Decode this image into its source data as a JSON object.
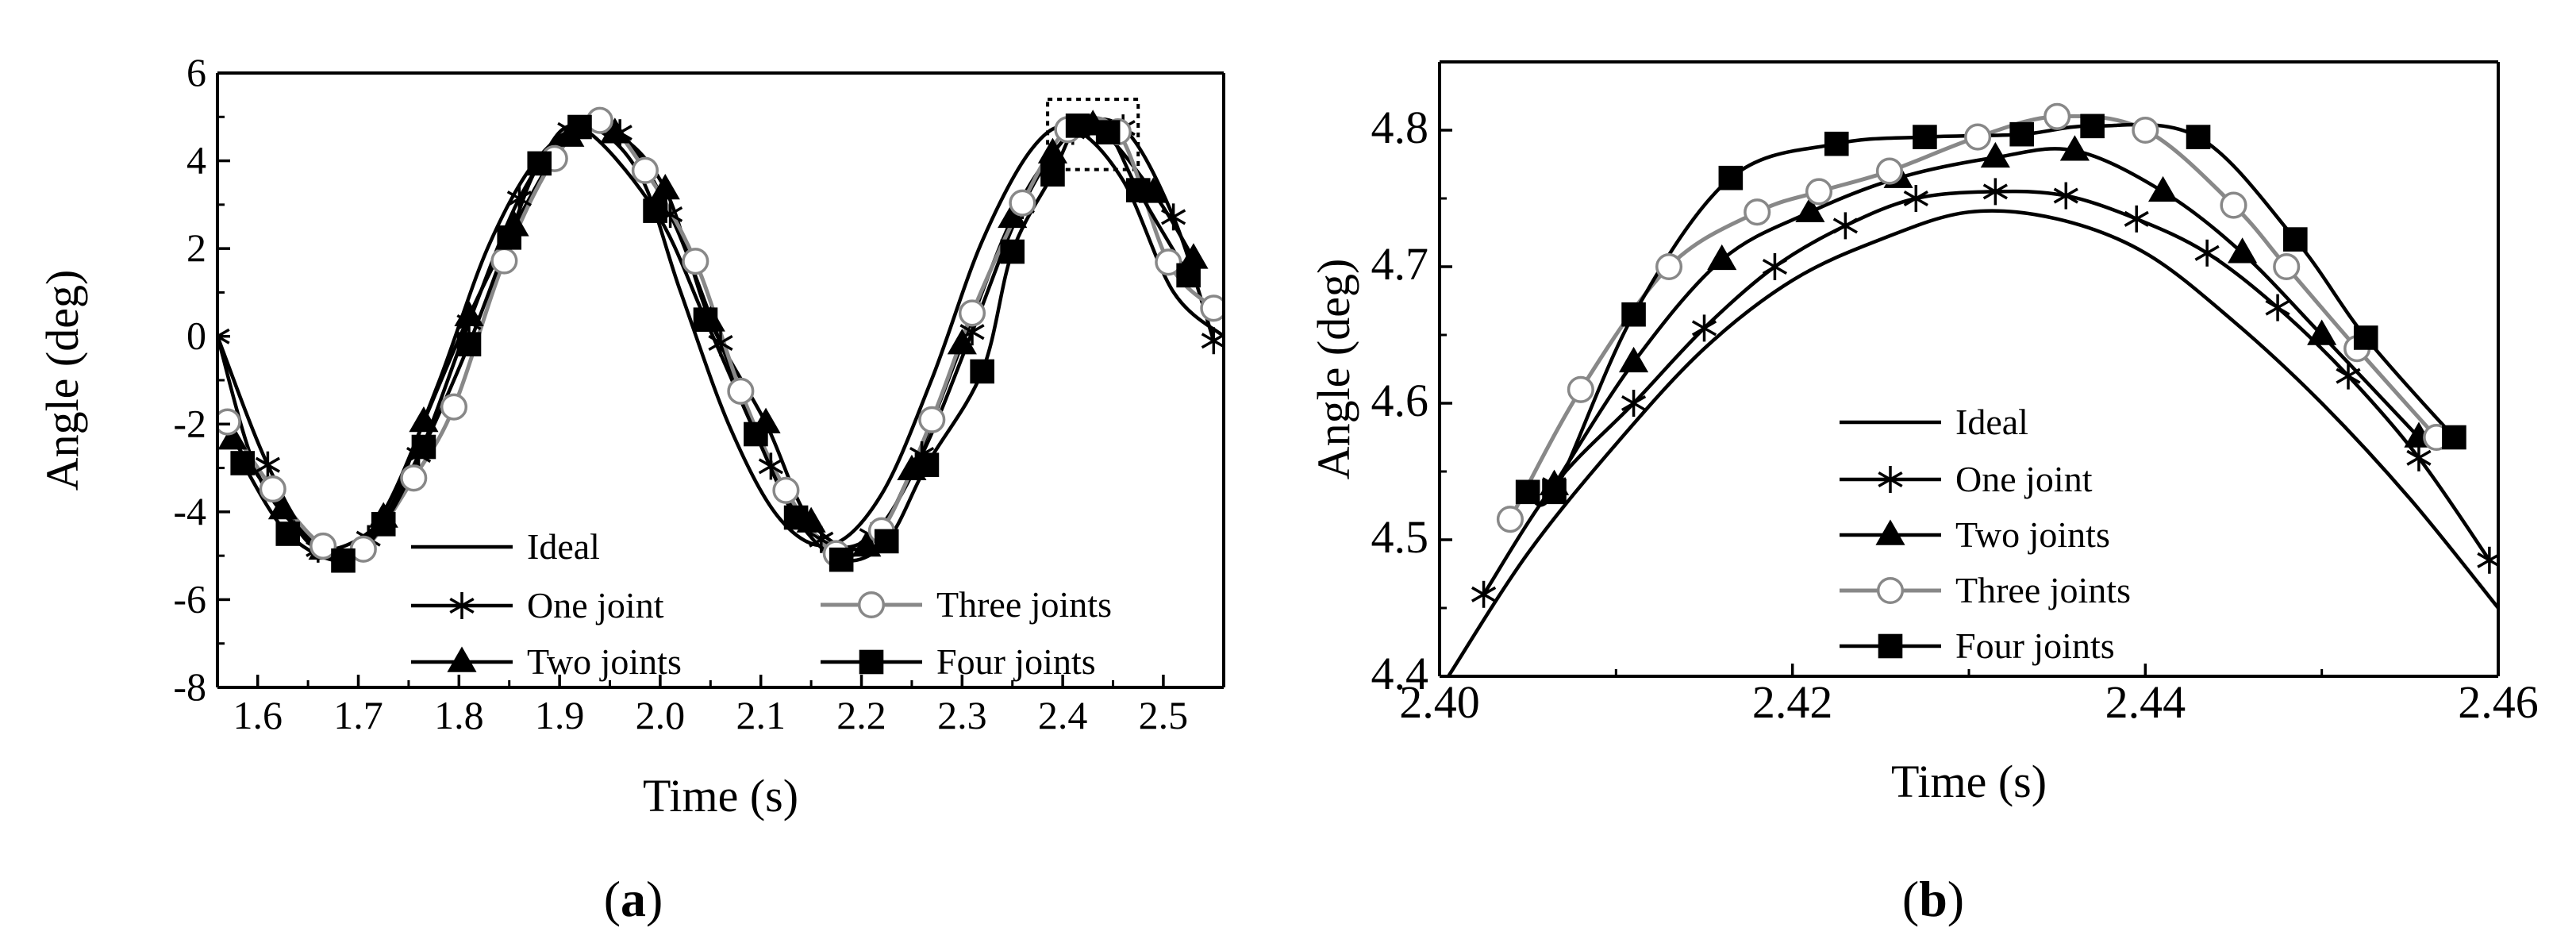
{
  "colors": {
    "ink": "#000000",
    "gray": "#888888",
    "white": "#ffffff"
  },
  "chart_data": [
    {
      "panel_label": "a",
      "type": "line",
      "xlabel": "Time (s)",
      "ylabel": "Angle (deg)",
      "xlim": [
        1.56,
        2.56
      ],
      "ylim": [
        -8,
        6
      ],
      "xticks": [
        "1.6",
        "1.7",
        "1.8",
        "1.9",
        "2.0",
        "2.1",
        "2.2",
        "2.3",
        "2.4",
        "2.5"
      ],
      "yticks": [
        "-8",
        "-6",
        "-4",
        "-2",
        "0",
        "2",
        "4",
        "6"
      ],
      "grid": false,
      "legend_position": "bottom-center, two columns",
      "zoom_box": {
        "x": [
          2.385,
          2.475
        ],
        "y": [
          3.8,
          5.4
        ]
      },
      "series": [
        {
          "name": "Ideal",
          "marker": "none",
          "color": "#000000",
          "x": [
            1.56,
            1.6,
            1.65,
            1.69,
            1.73,
            1.78,
            1.83,
            1.88,
            1.93,
            1.98,
            2.02,
            2.07,
            2.12,
            2.17,
            2.22,
            2.27,
            2.32,
            2.37,
            2.41,
            2.46,
            2.51,
            2.56
          ],
          "y": [
            0.0,
            -3.13,
            -4.58,
            -4.94,
            -3.8,
            -1.04,
            2.09,
            4.1,
            4.75,
            3.67,
            1.03,
            -2.11,
            -4.19,
            -4.75,
            -3.6,
            -0.97,
            2.17,
            4.29,
            4.74,
            3.55,
            1.01,
            0.0
          ]
        },
        {
          "name": "One joint",
          "marker": "star",
          "color": "#000000",
          "x": [
            1.56,
            1.61,
            1.66,
            1.71,
            1.76,
            1.81,
            1.86,
            1.91,
            1.96,
            2.01,
            2.06,
            2.11,
            2.16,
            2.21,
            2.26,
            2.31,
            2.36,
            2.41,
            2.46,
            2.51,
            2.55
          ],
          "y": [
            0.0,
            -2.93,
            -4.85,
            -4.61,
            -2.7,
            0.32,
            3.14,
            4.7,
            4.64,
            2.78,
            -0.15,
            -2.96,
            -4.63,
            -4.55,
            -2.7,
            0.1,
            2.98,
            4.67,
            4.75,
            2.72,
            -0.1
          ]
        },
        {
          "name": "Two joints",
          "marker": "triangle",
          "color": "#000000",
          "x": [
            1.575,
            1.625,
            1.665,
            1.725,
            1.765,
            1.81,
            1.855,
            1.91,
            1.955,
            2.005,
            2.05,
            2.105,
            2.15,
            2.205,
            2.25,
            2.3,
            2.35,
            2.39,
            2.43,
            2.49,
            2.53
          ],
          "y": [
            -2.35,
            -3.94,
            -4.86,
            -4.13,
            -1.95,
            0.46,
            2.51,
            4.55,
            4.63,
            3.35,
            0.34,
            -1.98,
            -4.24,
            -4.79,
            -3.05,
            -0.18,
            2.7,
            4.17,
            4.81,
            3.27,
            1.77
          ]
        },
        {
          "name": "Three joints",
          "marker": "circle-open",
          "color": "#888888",
          "x": [
            1.57,
            1.615,
            1.665,
            1.705,
            1.755,
            1.795,
            1.845,
            1.895,
            1.94,
            1.985,
            2.035,
            2.08,
            2.125,
            2.175,
            2.22,
            2.27,
            2.31,
            2.36,
            2.405,
            2.455,
            2.505,
            2.55
          ],
          "y": [
            -1.95,
            -3.48,
            -4.78,
            -4.85,
            -3.23,
            -1.61,
            1.72,
            4.05,
            4.92,
            3.78,
            1.71,
            -1.25,
            -3.51,
            -4.95,
            -4.43,
            -1.9,
            0.53,
            3.04,
            4.71,
            4.66,
            1.69,
            0.64
          ]
        },
        {
          "name": "Four joints",
          "marker": "square",
          "color": "#000000",
          "x": [
            1.585,
            1.63,
            1.685,
            1.725,
            1.765,
            1.81,
            1.85,
            1.88,
            1.92,
            1.995,
            2.045,
            2.095,
            2.135,
            2.18,
            2.225,
            2.265,
            2.32,
            2.35,
            2.39,
            2.415,
            2.445,
            2.475,
            2.525
          ],
          "y": [
            -2.89,
            -4.5,
            -5.11,
            -4.28,
            -2.52,
            -0.18,
            2.25,
            3.94,
            4.77,
            2.86,
            0.38,
            -2.23,
            -4.13,
            -5.09,
            -4.67,
            -2.93,
            -0.8,
            1.93,
            3.69,
            4.8,
            4.65,
            3.33,
            1.39
          ]
        }
      ]
    },
    {
      "panel_label": "b",
      "type": "line",
      "xlabel": "Time (s)",
      "ylabel": "Angle (deg)",
      "xlim": [
        2.4,
        2.46
      ],
      "ylim": [
        4.4,
        4.85
      ],
      "xticks": [
        "2.40",
        "2.42",
        "2.44",
        "2.46"
      ],
      "yticks": [
        "4.4",
        "4.5",
        "4.6",
        "4.7",
        "4.8"
      ],
      "grid": false,
      "legend_position": "center-left, one column",
      "series": [
        {
          "name": "Ideal",
          "marker": "none",
          "color": "#000000",
          "x": [
            2.4005,
            2.405,
            2.41,
            2.415,
            2.42,
            2.425,
            2.43,
            2.435,
            2.44,
            2.445,
            2.45,
            2.455,
            2.46
          ],
          "y": [
            4.4,
            4.49,
            4.57,
            4.64,
            4.69,
            4.72,
            4.74,
            4.735,
            4.71,
            4.66,
            4.6,
            4.53,
            4.45
          ]
        },
        {
          "name": "One joint",
          "marker": "star",
          "color": "#000000",
          "x": [
            2.4025,
            2.4065,
            2.411,
            2.415,
            2.419,
            2.423,
            2.427,
            2.4315,
            2.4355,
            2.4395,
            2.4435,
            2.4475,
            2.4515,
            2.4555,
            2.4595
          ],
          "y": [
            4.46,
            4.54,
            4.6,
            4.655,
            4.7,
            4.73,
            4.75,
            4.755,
            4.752,
            4.735,
            4.71,
            4.67,
            4.62,
            4.56,
            4.485
          ]
        },
        {
          "name": "Two joints",
          "marker": "triangle",
          "color": "#000000",
          "x": [
            2.4065,
            2.411,
            2.416,
            2.421,
            2.426,
            2.4315,
            2.436,
            2.441,
            2.4455,
            2.45,
            2.4555
          ],
          "y": [
            4.54,
            4.63,
            4.705,
            4.74,
            4.765,
            4.78,
            4.785,
            4.755,
            4.71,
            4.65,
            4.575
          ]
        },
        {
          "name": "Three joints",
          "marker": "circle-open",
          "color": "#888888",
          "x": [
            2.404,
            2.408,
            2.413,
            2.418,
            2.4215,
            2.4255,
            2.4305,
            2.435,
            2.44,
            2.445,
            2.448,
            2.452,
            2.4565
          ],
          "y": [
            4.515,
            4.61,
            4.7,
            4.74,
            4.755,
            4.77,
            4.795,
            4.81,
            4.8,
            4.745,
            4.7,
            4.64,
            4.575
          ]
        },
        {
          "name": "Four joints",
          "marker": "square",
          "color": "#000000",
          "x": [
            2.405,
            2.4065,
            2.411,
            2.4165,
            2.4225,
            2.4275,
            2.433,
            2.437,
            2.443,
            2.4485,
            2.4525,
            2.4575
          ],
          "y": [
            4.535,
            4.535,
            4.665,
            4.765,
            4.79,
            4.795,
            4.797,
            4.803,
            4.795,
            4.72,
            4.648,
            4.575
          ]
        }
      ]
    }
  ]
}
